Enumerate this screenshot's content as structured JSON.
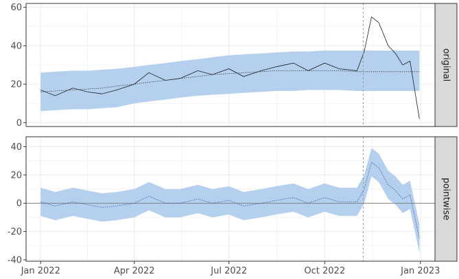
{
  "chart_data": [
    {
      "type": "line",
      "panel": "original",
      "x_dates": [
        "2022-01-01",
        "2022-01-15",
        "2022-02-01",
        "2022-02-15",
        "2022-03-01",
        "2022-03-15",
        "2022-04-01",
        "2022-04-15",
        "2022-05-01",
        "2022-05-15",
        "2022-06-01",
        "2022-06-15",
        "2022-07-01",
        "2022-07-15",
        "2022-08-01",
        "2022-08-15",
        "2022-09-01",
        "2022-09-15",
        "2022-10-01",
        "2022-10-15",
        "2022-11-01",
        "2022-11-08",
        "2022-11-15",
        "2022-11-22",
        "2022-12-01",
        "2022-12-08",
        "2022-12-15",
        "2022-12-22",
        "2022-12-31"
      ],
      "series": [
        {
          "role": "observed",
          "values": [
            17,
            14,
            18,
            16,
            15,
            17,
            20,
            26,
            22,
            23,
            27,
            25,
            28,
            24,
            27,
            29,
            31,
            27,
            31,
            28,
            27,
            37,
            55,
            52,
            40,
            36,
            30,
            32,
            2
          ]
        },
        {
          "role": "prediction",
          "values": [
            16,
            16.5,
            17,
            17.5,
            18,
            19,
            20,
            21,
            22,
            23,
            24,
            25,
            25.5,
            26,
            26.5,
            27,
            27,
            27,
            27,
            27,
            26.5,
            26.5,
            26.5,
            26.5,
            26.5,
            26.5,
            26.5,
            26.5,
            26.5
          ]
        },
        {
          "role": "ci_upper",
          "values": [
            26,
            26.5,
            27,
            27,
            27.5,
            28,
            29,
            30,
            31,
            32,
            33,
            34,
            35,
            35.5,
            36,
            36.5,
            37,
            37,
            37.5,
            37.5,
            37.5,
            37.5,
            37.5,
            37.5,
            37.5,
            37.5,
            37.5,
            37.5,
            37.5
          ]
        },
        {
          "role": "ci_lower",
          "values": [
            6,
            6.5,
            7,
            7,
            7.5,
            8,
            10,
            11,
            12,
            13,
            14,
            14.5,
            15,
            15.5,
            16,
            16.5,
            16.5,
            17,
            17,
            17,
            16.5,
            16.5,
            16.5,
            16.5,
            16.5,
            16.5,
            16.5,
            16.5,
            16.5
          ]
        }
      ],
      "ylim": [
        -2,
        62
      ],
      "yticks": [
        0,
        20,
        40,
        60
      ]
    },
    {
      "type": "line",
      "panel": "pointwise",
      "x_dates": [
        "2022-01-01",
        "2022-01-15",
        "2022-02-01",
        "2022-02-15",
        "2022-03-01",
        "2022-03-15",
        "2022-04-01",
        "2022-04-15",
        "2022-05-01",
        "2022-05-15",
        "2022-06-01",
        "2022-06-15",
        "2022-07-01",
        "2022-07-15",
        "2022-08-01",
        "2022-08-15",
        "2022-09-01",
        "2022-09-15",
        "2022-10-01",
        "2022-10-15",
        "2022-11-01",
        "2022-11-08",
        "2022-11-15",
        "2022-11-22",
        "2022-12-01",
        "2022-12-08",
        "2022-12-15",
        "2022-12-22",
        "2022-12-31"
      ],
      "series": [
        {
          "role": "effect",
          "values": [
            1,
            -2,
            1,
            -1,
            -3,
            -2,
            0,
            5,
            0,
            0,
            3,
            0,
            2,
            -2,
            0,
            2,
            4,
            0,
            4,
            1,
            1,
            10,
            29,
            25,
            13,
            9,
            3,
            6,
            -25
          ]
        },
        {
          "role": "ci_upper",
          "values": [
            11,
            8,
            11,
            9,
            7,
            8,
            10,
            15,
            10,
            10,
            13,
            10,
            12,
            8,
            10,
            12,
            14,
            10,
            14,
            11,
            11,
            20,
            39,
            35,
            23,
            19,
            13,
            16,
            -15
          ]
        },
        {
          "role": "ci_lower",
          "values": [
            -9,
            -12,
            -9,
            -11,
            -13,
            -12,
            -10,
            -5,
            -10,
            -10,
            -7,
            -10,
            -8,
            -12,
            -10,
            -8,
            -6,
            -10,
            -6,
            -9,
            -9,
            0,
            19,
            15,
            3,
            -1,
            -7,
            -4,
            -35
          ]
        }
      ],
      "ylim": [
        -41,
        47
      ],
      "yticks": [
        -40,
        -20,
        0,
        20,
        40
      ]
    }
  ],
  "intervention_date": "2022-11-07",
  "x_ticks": [
    {
      "date": "2022-01-01",
      "label": "Jan 2022"
    },
    {
      "date": "2022-04-01",
      "label": "Apr 2022"
    },
    {
      "date": "2022-07-01",
      "label": "Jul 2022"
    },
    {
      "date": "2022-10-01",
      "label": "Oct 2022"
    },
    {
      "date": "2023-01-01",
      "label": "Jan 2023"
    }
  ],
  "x_range": [
    "2021-12-18",
    "2023-01-15"
  ],
  "strips": [
    "original",
    "pointwise"
  ],
  "colors": {
    "band": "#b5d0ef",
    "observed": "#1a1a1a",
    "effect": "#3553a8",
    "prediction": "#3a3a3a",
    "zero_line": "#7f7f7f",
    "vline": "#999999",
    "grid": "#ebebeb",
    "strip_bg": "#d9d9d9",
    "panel_border": "#333333"
  }
}
